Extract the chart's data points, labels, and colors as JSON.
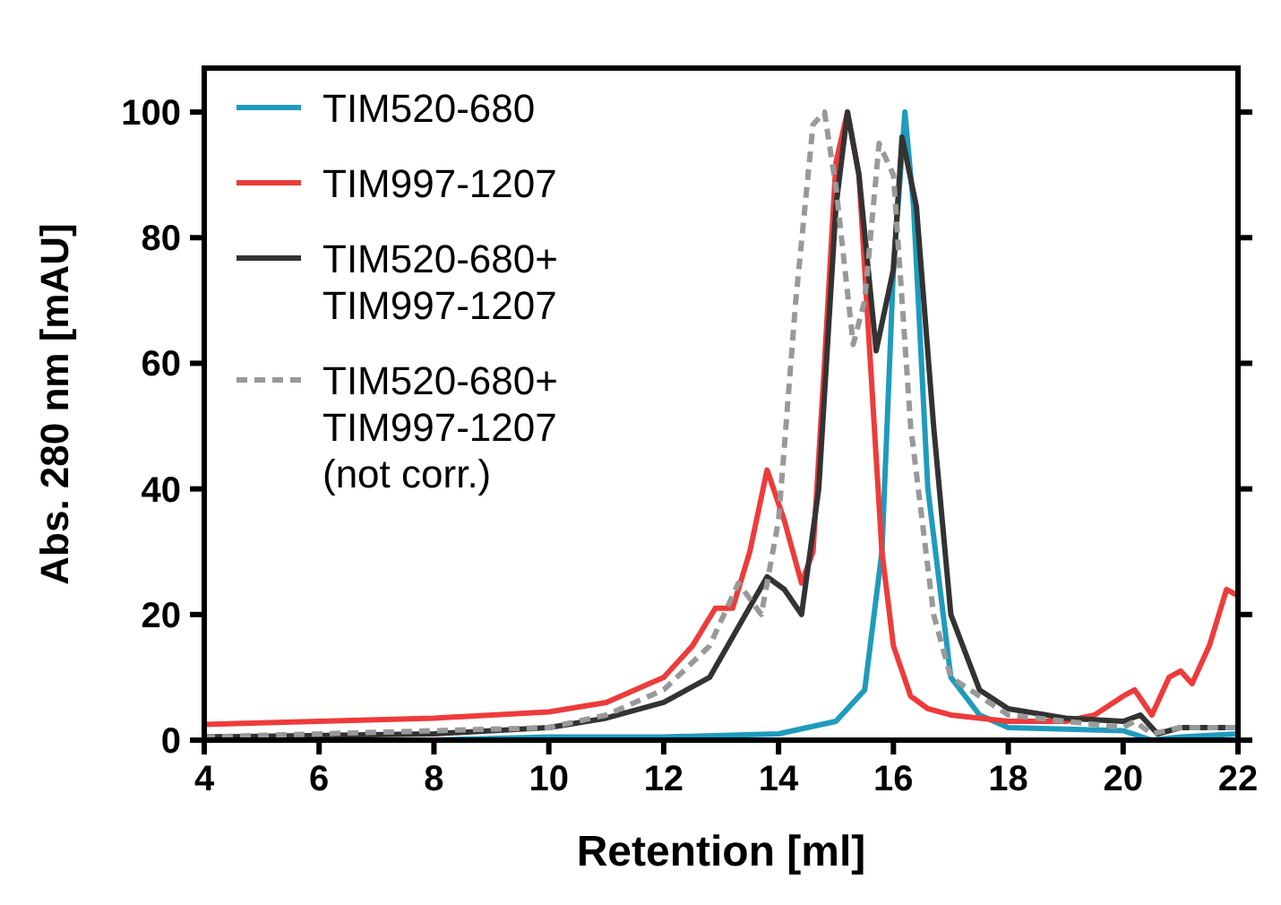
{
  "chart_data": {
    "type": "line",
    "xlabel": "Retention [ml]",
    "ylabel": "Abs. 280 nm [mAU]",
    "xlim": [
      4,
      22
    ],
    "xticks": [
      4,
      6,
      8,
      10,
      12,
      14,
      16,
      18,
      20,
      22
    ],
    "ylim": [
      0,
      107
    ],
    "yticks": [
      0,
      20,
      40,
      60,
      80,
      100
    ],
    "grid": false,
    "legend": "top left",
    "series": [
      {
        "name": "TIM520-680",
        "color": "#1f9bbd",
        "line_style": "solid",
        "x": [
          4,
          8,
          10,
          12,
          14,
          15,
          15.5,
          15.8,
          16,
          16.2,
          16.35,
          16.6,
          17,
          17.5,
          18,
          20,
          20.5,
          21,
          22
        ],
        "values": [
          0,
          0,
          0.5,
          0.5,
          1,
          3,
          8,
          30,
          75,
          100,
          85,
          40,
          10,
          4,
          2,
          1.5,
          0,
          0.5,
          1
        ]
      },
      {
        "name": "TIM997-1207",
        "color": "#ee3b3b",
        "line_style": "solid",
        "x": [
          4,
          6,
          8,
          10,
          11,
          12,
          12.5,
          12.9,
          13.2,
          13.5,
          13.8,
          14.1,
          14.4,
          14.6,
          14.8,
          15,
          15.2,
          15.4,
          15.6,
          15.8,
          16,
          16.3,
          16.6,
          17,
          18,
          19,
          19.5,
          20,
          20.2,
          20.5,
          20.8,
          21,
          21.2,
          21.5,
          21.8,
          22
        ],
        "values": [
          2.5,
          3,
          3.5,
          4.5,
          6,
          10,
          15,
          21,
          21,
          30,
          43,
          35,
          25,
          30,
          60,
          92,
          100,
          90,
          60,
          30,
          15,
          7,
          5,
          4,
          3,
          3,
          4,
          7,
          8,
          4,
          10,
          11,
          9,
          15,
          24,
          23
        ]
      },
      {
        "name": "TIM520-680+\nTIM997-1207",
        "color": "#333333",
        "line_style": "solid",
        "x": [
          4,
          8,
          10,
          11,
          12,
          12.8,
          13.3,
          13.8,
          14.1,
          14.4,
          14.7,
          15,
          15.2,
          15.4,
          15.7,
          16,
          16.15,
          16.4,
          16.7,
          17,
          17.5,
          18,
          19,
          20,
          20.3,
          20.6,
          21,
          22
        ],
        "values": [
          0.5,
          1,
          2,
          3.5,
          6,
          10,
          18,
          26,
          24,
          20,
          40,
          85,
          100,
          90,
          62,
          75,
          96,
          85,
          50,
          20,
          8,
          5,
          3.5,
          3,
          4,
          1,
          2,
          2
        ]
      },
      {
        "name": "TIM520-680+\nTIM997-1207\n(not corr.)",
        "color": "#999999",
        "line_style": "dashed",
        "x": [
          4,
          10,
          11,
          12,
          12.8,
          13.3,
          13.7,
          14,
          14.3,
          14.6,
          14.8,
          15,
          15.3,
          15.5,
          15.75,
          16,
          16.3,
          16.7,
          17,
          18,
          20,
          20.2,
          20.5,
          21,
          22
        ],
        "values": [
          0.5,
          2,
          4,
          8,
          15,
          25,
          20,
          35,
          70,
          98,
          100,
          88,
          63,
          70,
          95,
          90,
          50,
          20,
          10,
          4,
          2,
          3,
          1,
          2,
          2
        ]
      }
    ]
  }
}
